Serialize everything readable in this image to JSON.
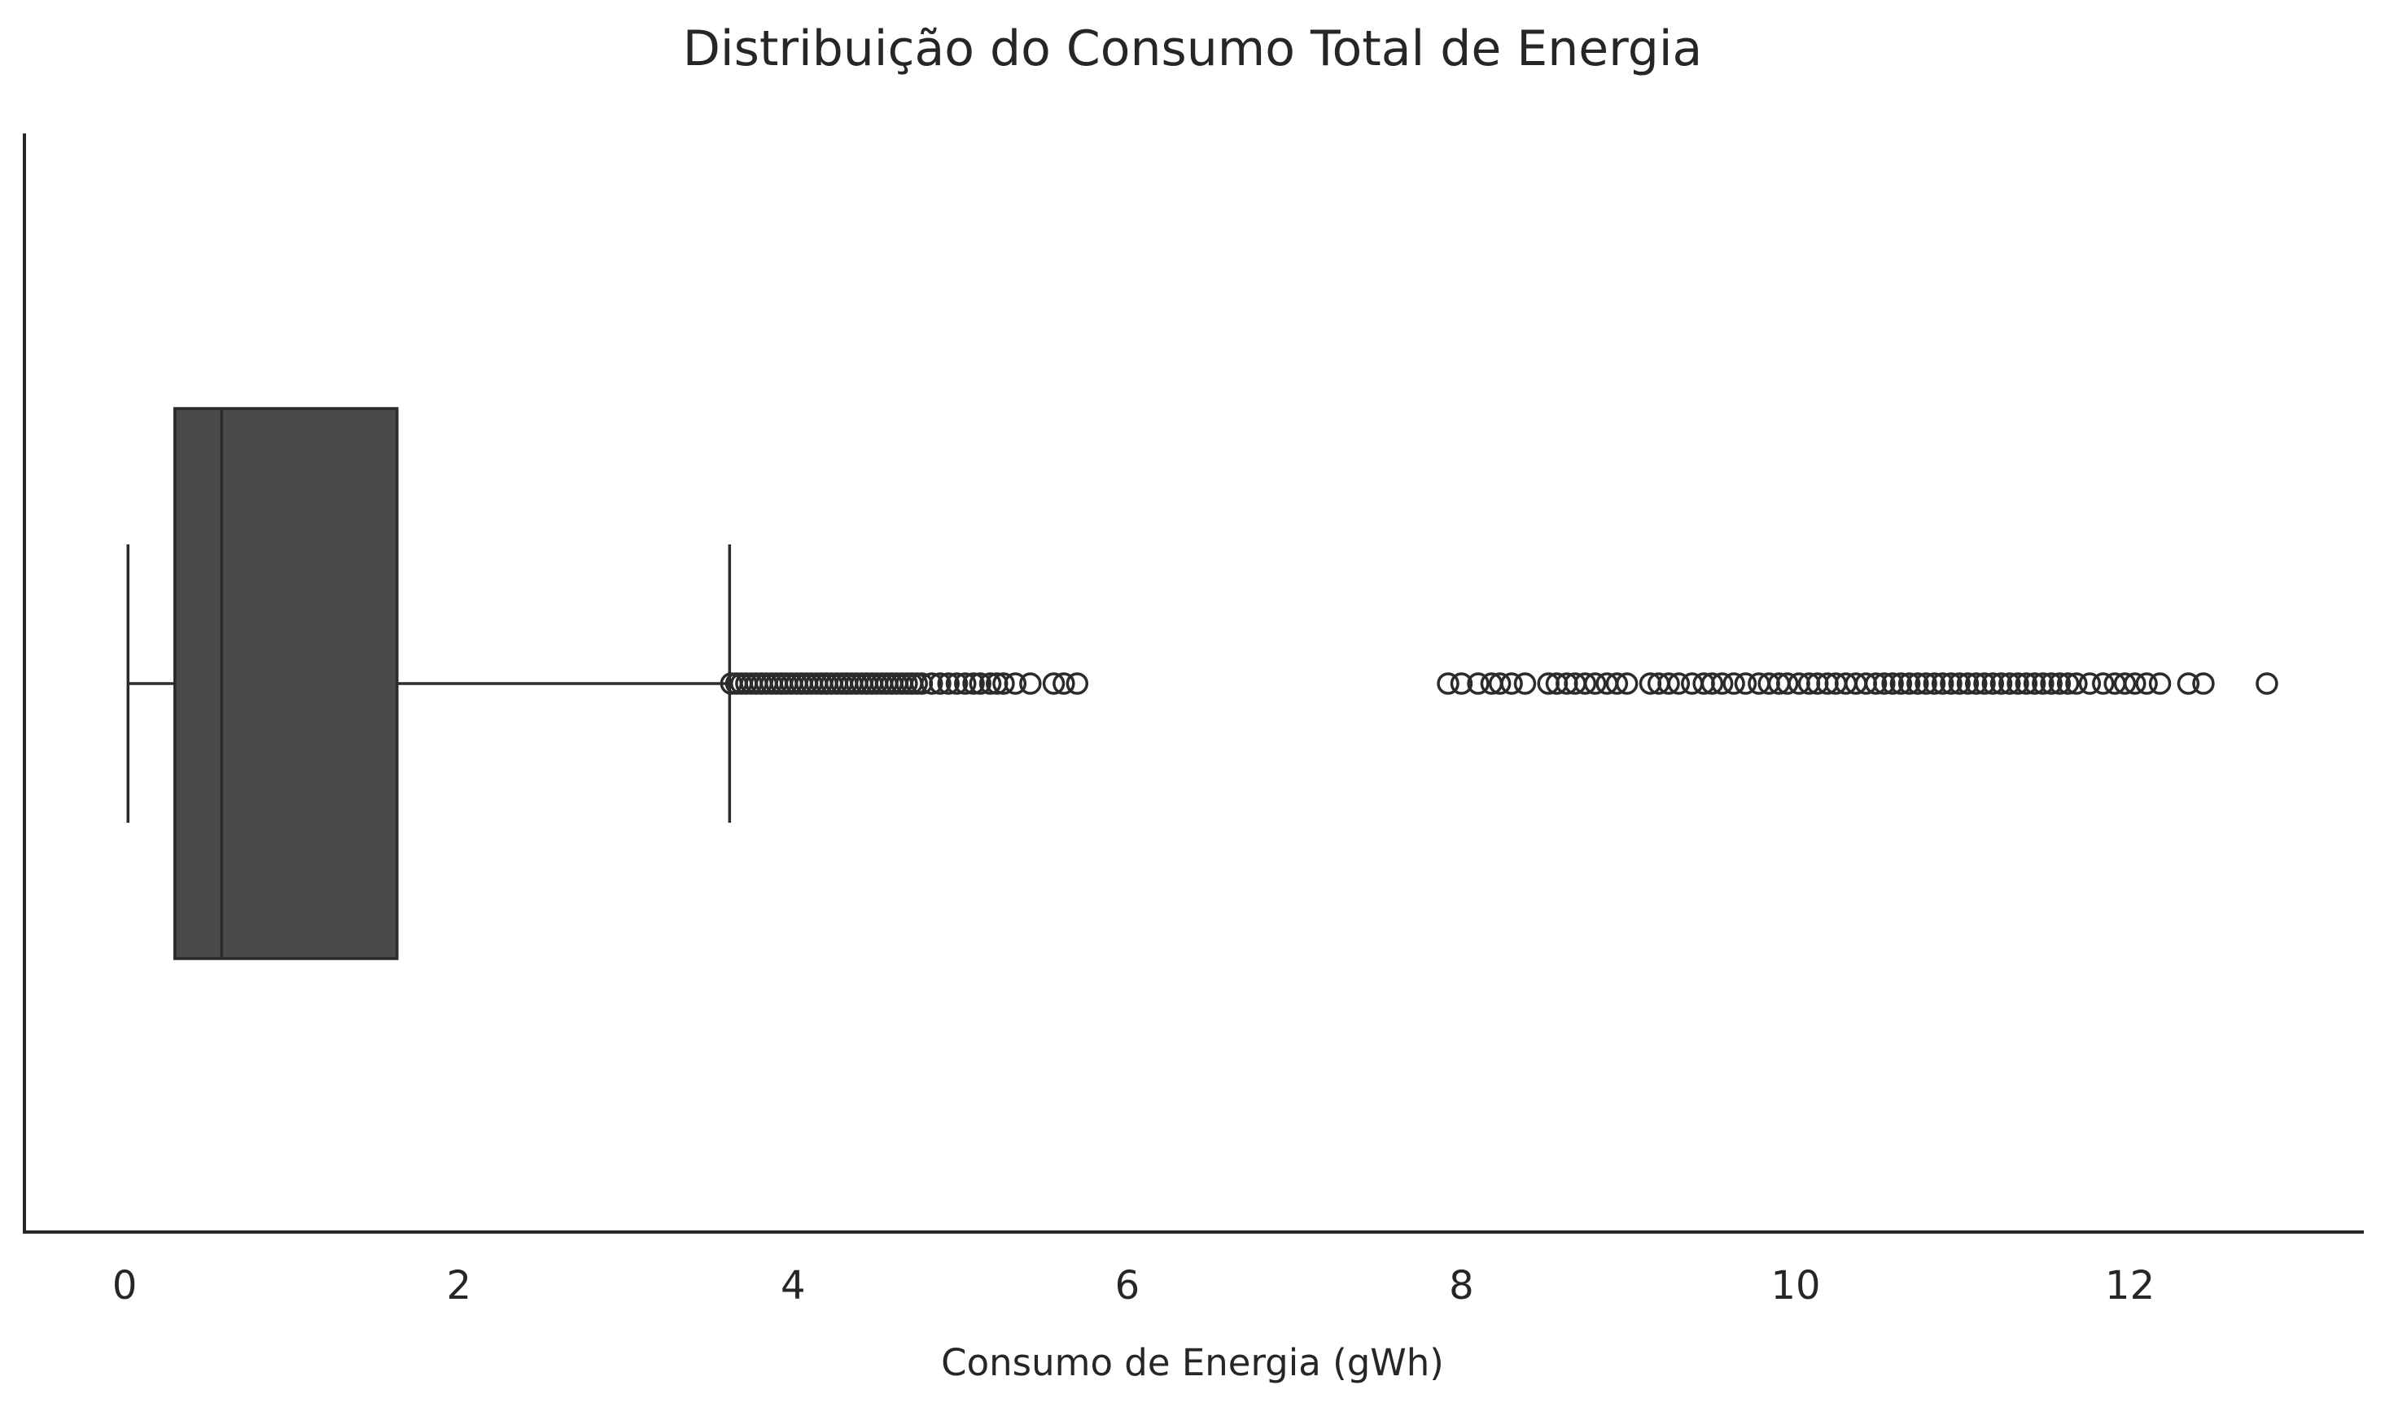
{
  "chart_data": {
    "type": "box",
    "orientation": "horizontal",
    "title": "Distribuição do Consumo Total de Energia",
    "xlabel": "Consumo de Energia (gWh)",
    "ylabel": "",
    "xlim": [
      -0.6,
      13.4
    ],
    "xticks": [
      0,
      2,
      4,
      6,
      8,
      10,
      12
    ],
    "grid": false,
    "box_color": "#4a4a4a",
    "line_color": "#2b2b2b",
    "stats": {
      "whisker_low": 0.02,
      "q1": 0.3,
      "median": 0.58,
      "q3": 1.63,
      "whisker_high": 3.62
    },
    "outliers": [
      3.63,
      3.66,
      3.69,
      3.72,
      3.75,
      3.78,
      3.81,
      3.84,
      3.87,
      3.9,
      3.93,
      3.96,
      3.99,
      4.02,
      4.05,
      4.08,
      4.11,
      4.14,
      4.17,
      4.2,
      4.23,
      4.26,
      4.29,
      4.32,
      4.35,
      4.38,
      4.41,
      4.44,
      4.47,
      4.5,
      4.53,
      4.56,
      4.59,
      4.62,
      4.65,
      4.68,
      4.71,
      4.74,
      4.77,
      4.83,
      4.88,
      4.93,
      4.98,
      5.03,
      5.08,
      5.12,
      5.18,
      5.22,
      5.26,
      5.33,
      5.42,
      5.56,
      5.62,
      5.7,
      7.92,
      8.0,
      8.1,
      8.18,
      8.23,
      8.3,
      8.38,
      8.52,
      8.57,
      8.63,
      8.68,
      8.74,
      8.8,
      8.87,
      8.93,
      8.99,
      9.13,
      9.18,
      9.24,
      9.3,
      9.38,
      9.45,
      9.5,
      9.56,
      9.63,
      9.7,
      9.78,
      9.84,
      9.9,
      9.95,
      10.02,
      10.08,
      10.13,
      10.19,
      10.24,
      10.3,
      10.36,
      10.42,
      10.48,
      10.53,
      10.58,
      10.63,
      10.68,
      10.73,
      10.78,
      10.83,
      10.88,
      10.93,
      10.98,
      11.03,
      11.08,
      11.13,
      11.18,
      11.23,
      11.28,
      11.33,
      11.38,
      11.43,
      11.48,
      11.53,
      11.58,
      11.63,
      11.68,
      11.76,
      11.84,
      11.91,
      11.97,
      12.03,
      12.1,
      12.18,
      12.35,
      12.44,
      12.82
    ]
  }
}
